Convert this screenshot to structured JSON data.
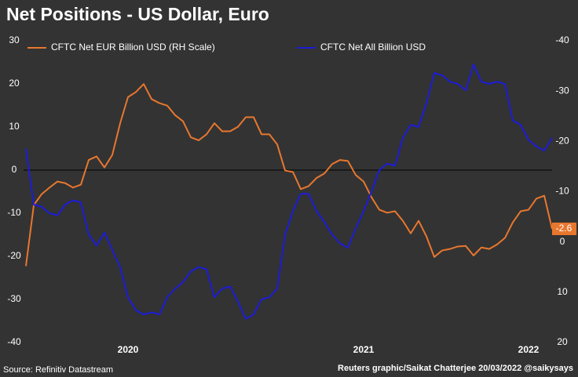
{
  "chart_data": {
    "type": "line",
    "title": "Net Positions - US Dollar, Euro",
    "source": "Source: Refinitiv Datastream",
    "credit": "Reuters graphic/Saikat Chatterjee 20/03/2022 @saikysays",
    "categories": [
      null,
      null,
      null,
      null,
      null,
      null,
      null,
      null,
      null,
      null,
      null,
      null,
      null,
      "2020",
      null,
      null,
      null,
      null,
      null,
      null,
      null,
      null,
      null,
      null,
      null,
      null,
      null,
      null,
      null,
      null,
      null,
      null,
      null,
      null,
      null,
      null,
      null,
      null,
      null,
      null,
      null,
      null,
      null,
      "2021",
      null,
      null,
      null,
      null,
      null,
      null,
      null,
      null,
      null,
      null,
      null,
      null,
      null,
      null,
      null,
      null,
      null,
      null,
      null,
      null,
      "2022",
      null,
      null,
      null
    ],
    "ylim": [
      -40,
      30
    ],
    "yticks": [
      30,
      20,
      10,
      0,
      -10,
      -20,
      -30,
      -40
    ],
    "y2lim": [
      20,
      -40
    ],
    "y2ticks": [
      -40,
      -30,
      -20,
      -10,
      0,
      10,
      20
    ],
    "series": [
      {
        "name": "CFTC Net EUR Billion USD (RH Scale)",
        "color": "#e8772e",
        "axis": "y2",
        "values": [
          4.8,
          -7.3,
          -9.5,
          -10.8,
          -12,
          -11.7,
          -10.8,
          -11.4,
          -16.3,
          -17,
          -14.8,
          -17.3,
          -23.6,
          -28.8,
          -29.8,
          -31.4,
          -28.4,
          -27.6,
          -27.1,
          -25.2,
          -24,
          -20.8,
          -20.2,
          -21.4,
          -23.6,
          -22,
          -22,
          -22.9,
          -24.8,
          -24.8,
          -21.4,
          -21.4,
          -19.4,
          -14.2,
          -13.9,
          -10.5,
          -11.1,
          -12.7,
          -13.6,
          -15.5,
          -16.3,
          -16.1,
          -13.3,
          -12,
          -8.9,
          -6.4,
          -5.8,
          -6.1,
          -4.2,
          -1.7,
          -4.2,
          -1.1,
          3,
          1.7,
          1.4,
          0.9,
          0.8,
          2.7,
          1.1,
          1.4,
          0.5,
          -0.8,
          -3.9,
          -6.1,
          -6.4,
          -8.6,
          -9.2,
          -2.6
        ]
      },
      {
        "name": "CFTC Net All Billion USD",
        "color": "#1c1cd8",
        "values": [
          5,
          -8,
          -8.5,
          -10,
          -10.5,
          -8,
          -7,
          -7.5,
          -15,
          -17.5,
          -14.5,
          -18.5,
          -22.5,
          -29.5,
          -32.5,
          -33.5,
          -33,
          -33.5,
          -29.5,
          -27.5,
          -26,
          -23.5,
          -22.5,
          -23,
          -29.5,
          -27.5,
          -27,
          -30.5,
          -34.5,
          -33.5,
          -30,
          -29.5,
          -27.5,
          -15,
          -9.5,
          -5.5,
          -5.5,
          -9.5,
          -12,
          -15,
          -17,
          -18,
          -13.5,
          -9.5,
          -5,
          0,
          1.5,
          1,
          7.5,
          10.5,
          10,
          15.5,
          22.5,
          22,
          20.5,
          20,
          18.5,
          24.5,
          20.5,
          20,
          20.5,
          20,
          11.5,
          10.5,
          7,
          5.5,
          4.5,
          7.5
        ]
      }
    ]
  }
}
